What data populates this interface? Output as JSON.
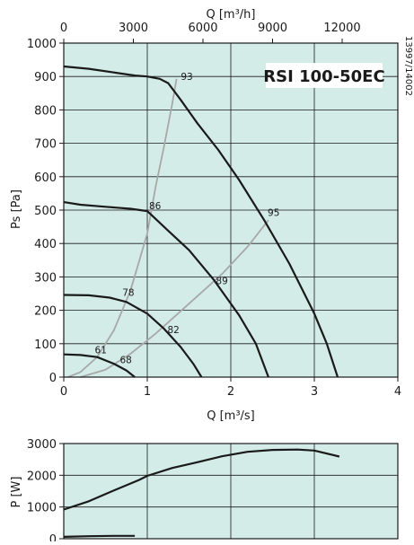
{
  "colors": {
    "plot_bg": "#d3ece8",
    "grid": "#1a1a1a",
    "curve": "#1a1a1a",
    "efficiency": "#a8a8a8",
    "text": "#1a1a1a"
  },
  "chart_data": [
    {
      "type": "line",
      "title": "RSI 100-50EC",
      "side_label": "13997/14002",
      "xlabel": "Q [m³/s]",
      "ylabel": "Ps [Pa]",
      "x2label": "Q [m³/h]",
      "xlim": [
        0,
        4
      ],
      "ylim": [
        0,
        1000
      ],
      "x_ticks": [
        "0",
        "1",
        "2",
        "3",
        "4"
      ],
      "y_ticks": [
        "0",
        "100",
        "200",
        "300",
        "400",
        "500",
        "600",
        "700",
        "800",
        "900",
        "1000"
      ],
      "x2_ticks": [
        {
          "x": 0,
          "label": "0"
        },
        {
          "x": 0.8333,
          "label": "3000"
        },
        {
          "x": 1.6667,
          "label": "6000"
        },
        {
          "x": 2.5,
          "label": "9000"
        },
        {
          "x": 3.3333,
          "label": "12000"
        }
      ],
      "grid": true,
      "series": [
        {
          "points": [
            [
              0,
              930
            ],
            [
              0.3,
              923
            ],
            [
              0.6,
              912
            ],
            [
              0.85,
              903
            ],
            [
              1.0,
              900
            ],
            [
              1.15,
              893
            ],
            [
              1.25,
              880
            ],
            [
              1.4,
              830
            ],
            [
              1.6,
              760
            ],
            [
              1.85,
              680
            ],
            [
              2.1,
              590
            ],
            [
              2.4,
              470
            ],
            [
              2.7,
              340
            ],
            [
              3.0,
              190
            ],
            [
              3.15,
              100
            ],
            [
              3.28,
              0
            ]
          ]
        },
        {
          "points": [
            [
              0,
              524
            ],
            [
              0.2,
              516
            ],
            [
              0.5,
              510
            ],
            [
              0.8,
              504
            ],
            [
              1.0,
              497
            ],
            [
              1.2,
              450
            ],
            [
              1.5,
              380
            ],
            [
              1.8,
              290
            ],
            [
              2.1,
              185
            ],
            [
              2.3,
              100
            ],
            [
              2.45,
              0
            ]
          ]
        },
        {
          "points": [
            [
              0,
              246
            ],
            [
              0.3,
              245
            ],
            [
              0.55,
              238
            ],
            [
              0.75,
              225
            ],
            [
              1.0,
              190
            ],
            [
              1.2,
              145
            ],
            [
              1.4,
              90
            ],
            [
              1.55,
              40
            ],
            [
              1.65,
              0
            ]
          ]
        },
        {
          "points": [
            [
              0,
              68
            ],
            [
              0.2,
              66
            ],
            [
              0.4,
              60
            ],
            [
              0.6,
              40
            ],
            [
              0.75,
              20
            ],
            [
              0.85,
              0
            ]
          ]
        }
      ],
      "efficiency_lines": [
        {
          "points": [
            [
              0.05,
              0
            ],
            [
              0.2,
              15
            ],
            [
              0.4,
              60
            ],
            [
              0.6,
              140
            ],
            [
              0.8,
              260
            ],
            [
              1.0,
              430
            ],
            [
              1.1,
              570
            ],
            [
              1.2,
              690
            ],
            [
              1.3,
              820
            ],
            [
              1.35,
              893
            ]
          ]
        },
        {
          "points": [
            [
              0.2,
              0
            ],
            [
              0.5,
              22
            ],
            [
              0.8,
              70
            ],
            [
              1.1,
              130
            ],
            [
              1.5,
              220
            ],
            [
              1.9,
              310
            ],
            [
              2.2,
              390
            ],
            [
              2.45,
              470
            ]
          ]
        }
      ],
      "annotations": [
        {
          "x": 1.38,
          "y": 890,
          "text": "93"
        },
        {
          "x": 1.0,
          "y": 503,
          "text": "86"
        },
        {
          "x": 2.42,
          "y": 482,
          "text": "95"
        },
        {
          "x": 0.68,
          "y": 243,
          "text": "78"
        },
        {
          "x": 1.8,
          "y": 278,
          "text": "89"
        },
        {
          "x": 1.22,
          "y": 132,
          "text": "82"
        },
        {
          "x": 0.35,
          "y": 71,
          "text": "61"
        },
        {
          "x": 0.65,
          "y": 42,
          "text": "68"
        }
      ]
    },
    {
      "type": "line",
      "ylabel": "P [W]",
      "xlim": [
        0,
        4
      ],
      "ylim": [
        0,
        3000
      ],
      "y_ticks": [
        "0",
        "1000",
        "2000",
        "3000"
      ],
      "grid": true,
      "series": [
        {
          "points": [
            [
              0,
              920
            ],
            [
              0.3,
              1180
            ],
            [
              0.6,
              1520
            ],
            [
              0.9,
              1850
            ],
            [
              1.0,
              1980
            ],
            [
              1.3,
              2230
            ],
            [
              1.6,
              2410
            ],
            [
              1.9,
              2600
            ],
            [
              2.2,
              2740
            ],
            [
              2.5,
              2800
            ],
            [
              2.8,
              2810
            ],
            [
              3.0,
              2780
            ],
            [
              3.3,
              2590
            ]
          ]
        },
        {
          "points": [
            [
              0,
              60
            ],
            [
              0.3,
              80
            ],
            [
              0.6,
              90
            ],
            [
              0.85,
              90
            ]
          ]
        }
      ]
    }
  ]
}
